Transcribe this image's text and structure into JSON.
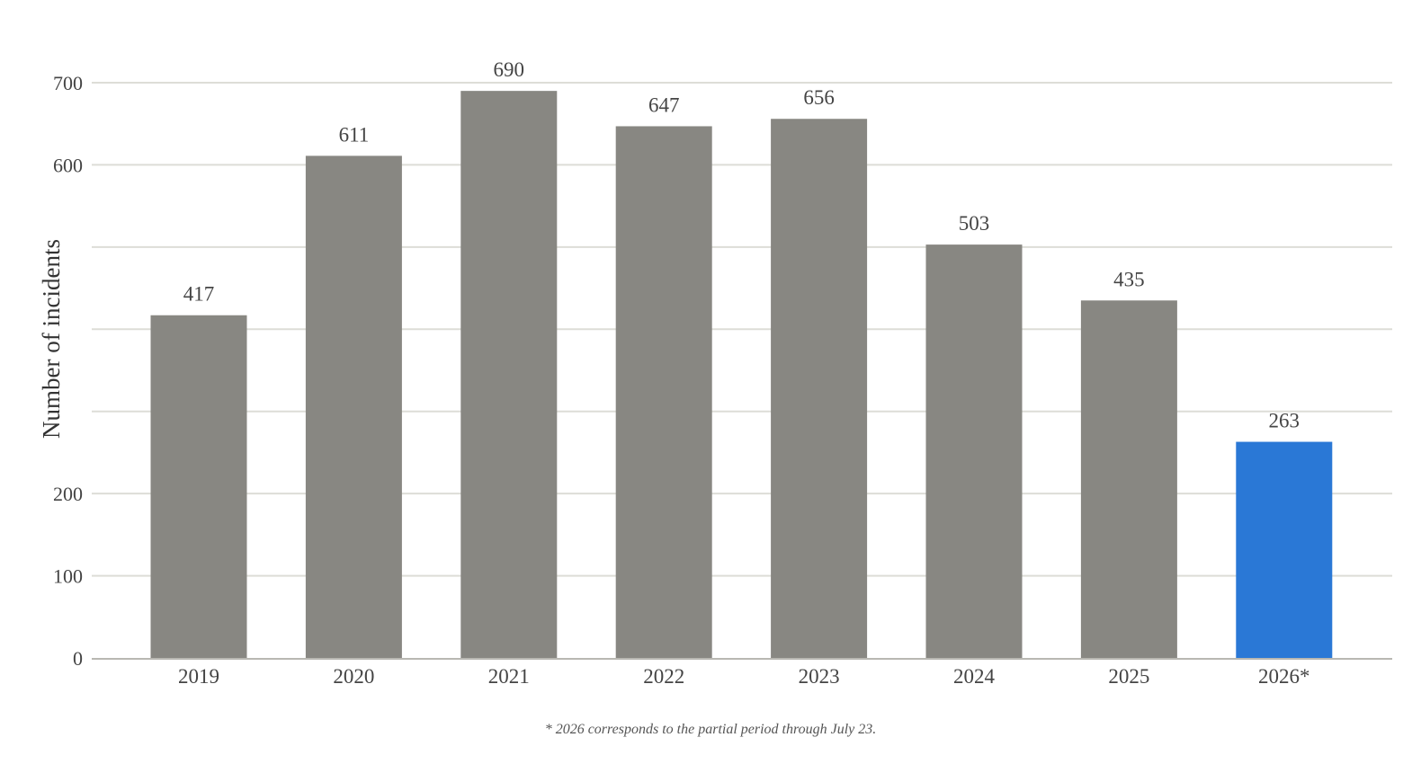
{
  "chart_data": {
    "type": "bar",
    "categories": [
      "2019",
      "2020",
      "2021",
      "2022",
      "2023",
      "2024",
      "2025",
      "2026*"
    ],
    "values": [
      417,
      611,
      690,
      647,
      656,
      503,
      435,
      263
    ],
    "data_labels": [
      "417",
      "611",
      "690",
      "647",
      "656",
      "503",
      "435",
      "263"
    ],
    "title": "",
    "xlabel": "",
    "ylabel": "Number of incidents",
    "ylim": [
      0,
      700
    ],
    "yticks": [
      0,
      100,
      200,
      300,
      400,
      500,
      600,
      700
    ],
    "ytick_labels": [
      "0",
      "100",
      "200",
      "",
      "",
      "",
      "600",
      "700"
    ],
    "grid": true,
    "legend": "none",
    "colors": {
      "bar": "#888782",
      "highlight_bar": "#2a78d6",
      "highlight_category": "2026*",
      "grid": "#ddddd7",
      "axis": "#b9b8b2",
      "text": "#444444"
    }
  },
  "footnote": "* 2026 corresponds to the partial period through July 23."
}
